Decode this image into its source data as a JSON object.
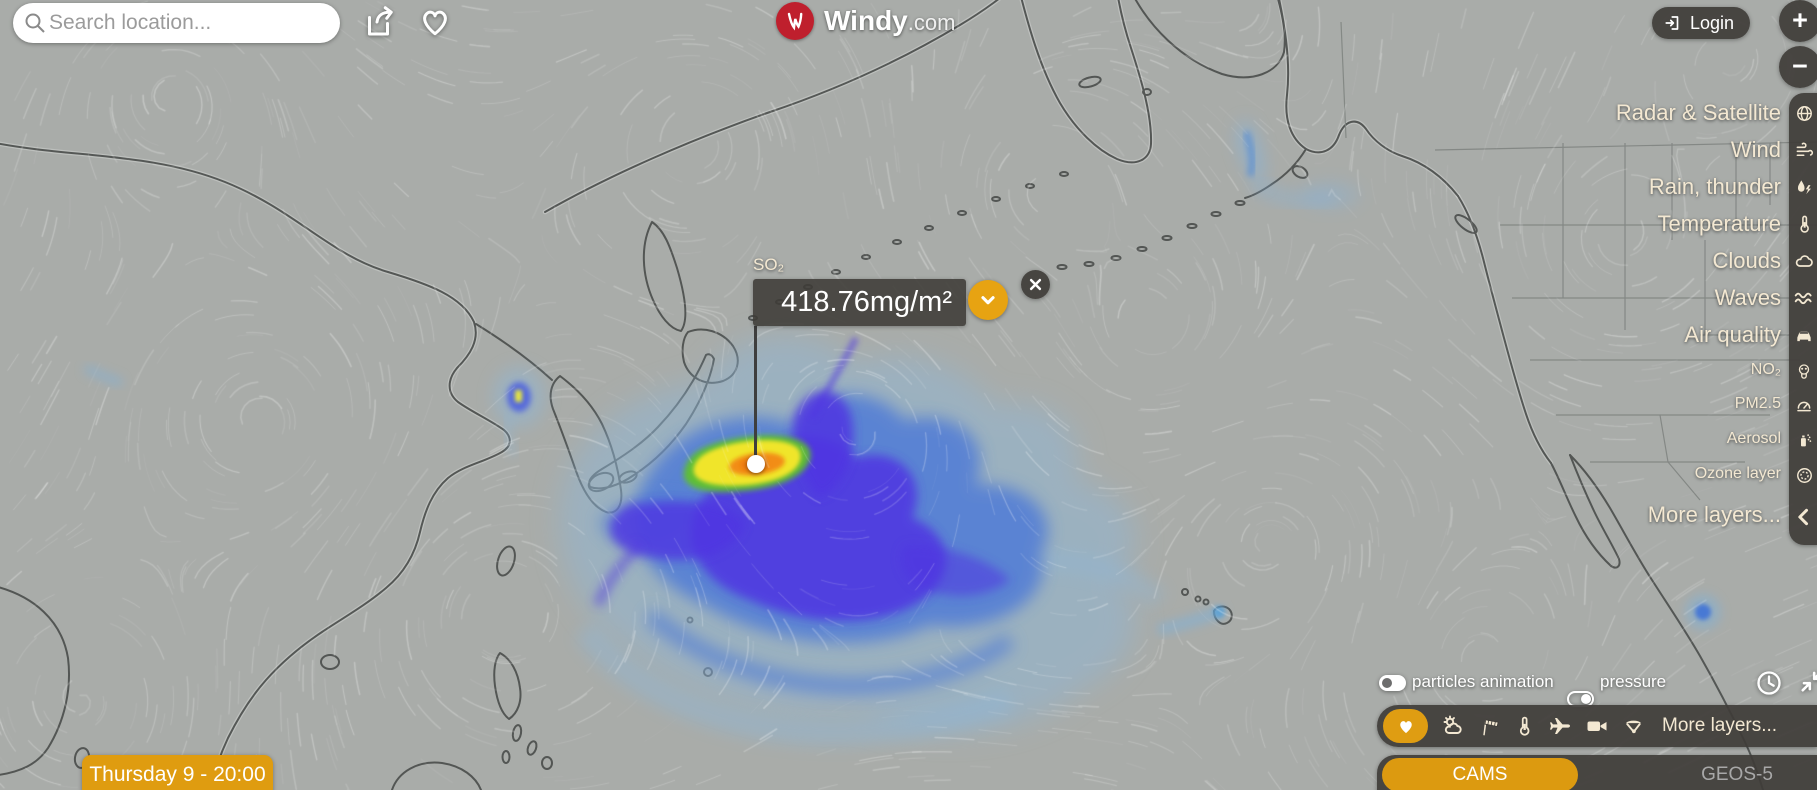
{
  "header": {
    "search_placeholder": "Search location...",
    "brand": "Windy",
    "brand_tld": ".com",
    "login_label": "Login"
  },
  "map_zoom": {
    "zoom_in": "+",
    "zoom_out": "−"
  },
  "layer_menu": {
    "items": [
      {
        "label": "Radar & Satellite",
        "icon": "radar-satellite-icon",
        "level": "main"
      },
      {
        "label": "Wind",
        "icon": "wind-icon",
        "level": "main"
      },
      {
        "label": "Rain, thunder",
        "icon": "rain-thunder-icon",
        "level": "main"
      },
      {
        "label": "Temperature",
        "icon": "temperature-icon",
        "level": "main"
      },
      {
        "label": "Clouds",
        "icon": "clouds-icon",
        "level": "main"
      },
      {
        "label": "Waves",
        "icon": "waves-icon",
        "level": "main"
      },
      {
        "label": "Air quality",
        "icon": "air-quality-icon",
        "level": "main"
      },
      {
        "label": "NO₂",
        "icon": "no2-icon",
        "level": "sub"
      },
      {
        "label": "PM2.5",
        "icon": "pm25-icon",
        "level": "sub"
      },
      {
        "label": "Aerosol",
        "icon": "aerosol-icon",
        "level": "sub"
      },
      {
        "label": "Ozone layer",
        "icon": "ozone-icon",
        "level": "sub"
      },
      {
        "label": "More layers...",
        "icon": "collapse-icon",
        "level": "main"
      }
    ]
  },
  "picker": {
    "layer": "SO₂",
    "value": "418.76mg/m²"
  },
  "timeline": {
    "label": "Thursday 9 - 20:00"
  },
  "map_controls": {
    "particles_label": "particles animation",
    "particles_on": true,
    "pressure_label": "pressure",
    "pressure_on": false
  },
  "overlay_bar": {
    "icons": [
      "favorites-heart",
      "partly-cloudy",
      "windsock",
      "thermometer",
      "airplane",
      "webcams",
      "paraglider"
    ],
    "more_label": "More layers..."
  },
  "models": {
    "selected": "CAMS",
    "alternative": "GEOS-5"
  },
  "colors": {
    "accent_orange": "#df9d12",
    "panel_dark": "#3f3c38",
    "label_cream": "#f3e8d2",
    "map_base": "#a9aca9",
    "plume_low": "#8fb6d6",
    "plume_mid": "#4c78d8",
    "plume_high": "#4f35e2",
    "plume_extreme_yellow": "#f0e52c",
    "plume_extreme_orange": "#f28d13",
    "logo_red": "#bf1f2d"
  }
}
